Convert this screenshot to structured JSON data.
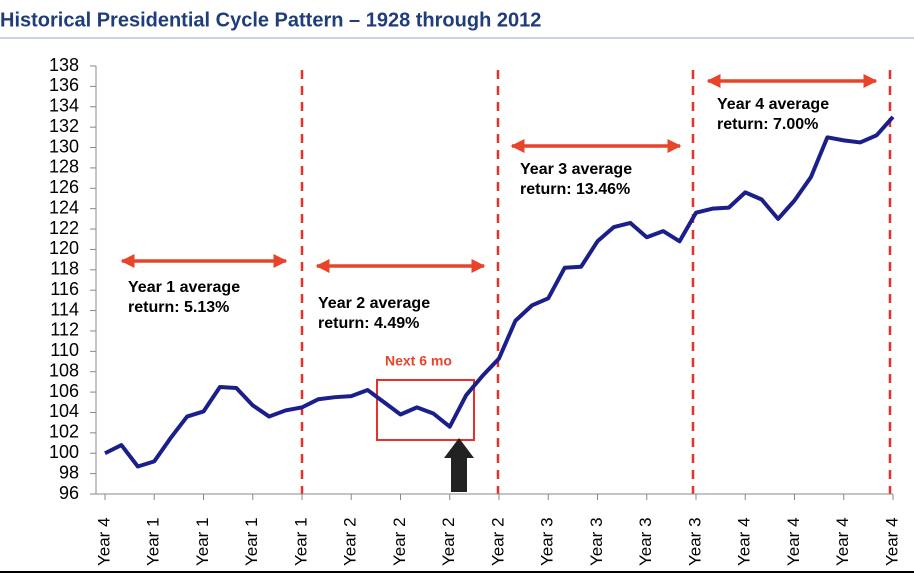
{
  "chart_data": {
    "type": "line",
    "title": "Historical Presidential Cycle Pattern – 1928 through 2012",
    "categories": [
      "Year 4",
      null,
      null,
      "Year 1",
      null,
      null,
      "Year 1",
      null,
      null,
      "Year 1",
      null,
      null,
      "Year 1",
      null,
      null,
      "Year 2",
      null,
      null,
      "Year 2",
      null,
      null,
      "Year 2",
      null,
      null,
      "Year 2",
      null,
      null,
      "Year 3",
      null,
      null,
      "Year 3",
      null,
      null,
      "Year 3",
      null,
      null,
      "Year 3",
      null,
      null,
      "Year 4",
      null,
      null,
      "Year 4",
      null,
      null,
      "Year 4",
      null,
      null,
      "Year 4"
    ],
    "values": [
      100.0,
      100.8,
      98.7,
      99.2,
      101.5,
      103.6,
      104.1,
      106.5,
      106.4,
      104.7,
      103.6,
      104.2,
      104.5,
      105.3,
      105.5,
      105.6,
      106.2,
      105.0,
      103.8,
      104.5,
      103.9,
      102.6,
      105.7,
      107.6,
      109.3,
      113.0,
      114.5,
      115.2,
      118.2,
      118.3,
      120.8,
      122.2,
      122.6,
      121.2,
      121.8,
      120.8,
      123.6,
      124.0,
      124.1,
      125.6,
      124.9,
      123.0,
      124.8,
      127.1,
      131.0,
      130.7,
      130.5,
      131.2,
      133.0
    ],
    "color": "#1b1f8a",
    "ylim": [
      96,
      138
    ],
    "yticks": [
      96,
      98,
      100,
      102,
      104,
      106,
      108,
      110,
      112,
      114,
      116,
      118,
      120,
      122,
      124,
      126,
      128,
      130,
      132,
      134,
      136,
      138
    ],
    "annotations": [
      {
        "lines": [
          "Year 1 average",
          "return: 5.13%"
        ]
      },
      {
        "lines": [
          "Year 2 average",
          "return: 4.49%"
        ]
      },
      {
        "lines": [
          "Year 3 average",
          "return: 13.46%"
        ]
      },
      {
        "lines": [
          "Year 4 average",
          "return: 7.00%"
        ]
      },
      {
        "lines": [
          "Next 6 mo"
        ]
      }
    ]
  }
}
